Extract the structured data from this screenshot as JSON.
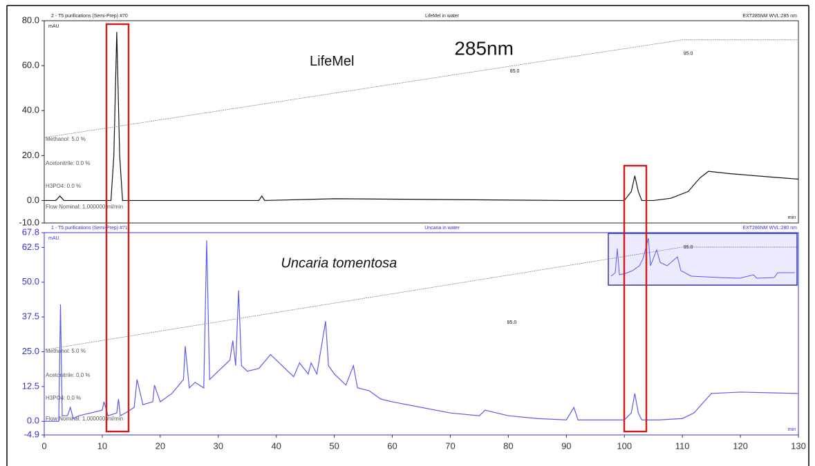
{
  "chart_data": [
    {
      "type": "line",
      "header": [
        "2 - T5 purifications (Semi-Prep) #70",
        "LifeMel in water",
        "EXT285NM WVL:285 nm"
      ],
      "ylabel": "mAU",
      "xlabel": "min",
      "axis_color": "#222222",
      "method_labels": [
        "Methanol: 5.0 %",
        "Acetonitrile: 0.0 %",
        "H3PO4: 0.0 %",
        "Flow Nominal: 1.000000 ml/min"
      ],
      "xlim": [
        0,
        130
      ],
      "ylim": [
        -10,
        80
      ],
      "yticks": [
        {
          "value": 80,
          "label": "80.0"
        },
        {
          "value": 60,
          "label": "60.0"
        },
        {
          "value": 40,
          "label": "40.0"
        },
        {
          "value": 20,
          "label": "20.0"
        },
        {
          "value": 0,
          "label": "0.0"
        },
        {
          "value": -10,
          "label": "-10.0"
        }
      ],
      "x": [
        0,
        2,
        2.7,
        3.4,
        10,
        11.5,
        12,
        12.5,
        13,
        13.5,
        15,
        37,
        37.5,
        38,
        50,
        60,
        90,
        100,
        101.2,
        101.8,
        102.4,
        103,
        105,
        108,
        111,
        113,
        114.5,
        118,
        125,
        130
      ],
      "series": [
        {
          "color": "#111111",
          "values": [
            0,
            0,
            2,
            0,
            0,
            0,
            20,
            75,
            20,
            0,
            0,
            0,
            2,
            0,
            0.8,
            0.6,
            0,
            0,
            4,
            11,
            4,
            0,
            0,
            1,
            4,
            10,
            13,
            12,
            10.5,
            9.5
          ]
        },
        {
          "color": "#888888",
          "dashed": true,
          "x": [
            0,
            110,
            130
          ],
          "values": [
            28,
            71.5,
            71.5
          ]
        }
      ],
      "annotations": [
        {
          "text": "LifeMel",
          "x": 49.6,
          "y": 61.6,
          "size": 20
        },
        {
          "text": "285nm",
          "x": 75.8,
          "y": 67.1,
          "size": 28
        },
        {
          "text": "85.0",
          "x": 81.1,
          "y": 57.6,
          "size": 7
        },
        {
          "text": "95.0",
          "x": 111,
          "y": 65.3,
          "size": 7
        }
      ]
    },
    {
      "type": "line",
      "header": [
        "1 - T5 purifications (Semi-Prep) #71",
        "Uncaria in water",
        "EXT280NM WVL:280 nm"
      ],
      "ylabel": "mAU",
      "xlabel": "min",
      "axis_color": "#3333cc",
      "method_labels": [
        "Methanol: 5.0 %",
        "Acetonitrile: 0.0 %",
        "H3PO4: 0.0 %",
        "Flow Nominal: 1.000000 ml/min"
      ],
      "xlim": [
        0,
        130
      ],
      "ylim": [
        -4.9,
        67.8
      ],
      "xticks": [
        0,
        10,
        20,
        30,
        40,
        50,
        60,
        70,
        80,
        90,
        100,
        110,
        120,
        130
      ],
      "yticks": [
        67.8,
        62.5,
        {
          "value": 50,
          "label": "50.0"
        },
        37.5,
        {
          "value": 25,
          "label": "25.0"
        },
        12.5,
        {
          "value": 0,
          "label": "0.0"
        },
        -4.9
      ],
      "x": [
        0,
        2.5,
        2.8,
        3.1,
        4,
        4.5,
        5,
        6,
        8,
        10,
        10.3,
        11,
        12.5,
        12.8,
        13.1,
        14,
        15.5,
        16,
        17,
        18.7,
        19,
        20,
        22,
        24,
        24.3,
        25,
        26,
        27.5,
        28,
        28.5,
        30,
        32,
        32.5,
        33,
        33.5,
        34,
        35,
        37,
        39,
        40,
        42,
        43,
        44,
        45.5,
        46,
        47,
        48.5,
        49,
        50,
        52,
        53.3,
        54,
        56,
        58,
        60,
        65,
        70,
        75,
        76,
        80,
        85,
        90,
        91.3,
        92,
        95,
        100,
        101.2,
        101.8,
        102.4,
        103,
        106,
        110,
        112,
        115,
        120,
        126,
        130
      ],
      "series": [
        {
          "color": "#5a5aee",
          "values": [
            0,
            0,
            42,
            2,
            2,
            5,
            1,
            2,
            3,
            4,
            7,
            2,
            3,
            8,
            2,
            3,
            5,
            15,
            6,
            7,
            13,
            7,
            10,
            15,
            27,
            12,
            14,
            12,
            65,
            15,
            18,
            22,
            29,
            20,
            47,
            20,
            18,
            19,
            24,
            22,
            18,
            16,
            21,
            17,
            21,
            17,
            36,
            20,
            17,
            13,
            20,
            12,
            11,
            8,
            7,
            5,
            3,
            2,
            4,
            2,
            1,
            0.5,
            5,
            0.5,
            0.5,
            0.5,
            3,
            10,
            3,
            0.5,
            0.5,
            1,
            3,
            10,
            10.5,
            10.2,
            10
          ]
        },
        {
          "color": "#888888",
          "dashed": true,
          "x": [
            0,
            110,
            130
          ],
          "values": [
            25.7,
            62.6,
            62.6
          ]
        }
      ],
      "annotations": [
        {
          "text": "Uncaria tomentosa",
          "x": 50.8,
          "y": 56.6,
          "size": 20,
          "italic": true
        },
        {
          "text": "85.0",
          "x": 80.6,
          "y": 35.5,
          "size": 7
        },
        {
          "text": "95.0",
          "x": 111,
          "y": 62.6,
          "size": 7
        }
      ]
    }
  ]
}
